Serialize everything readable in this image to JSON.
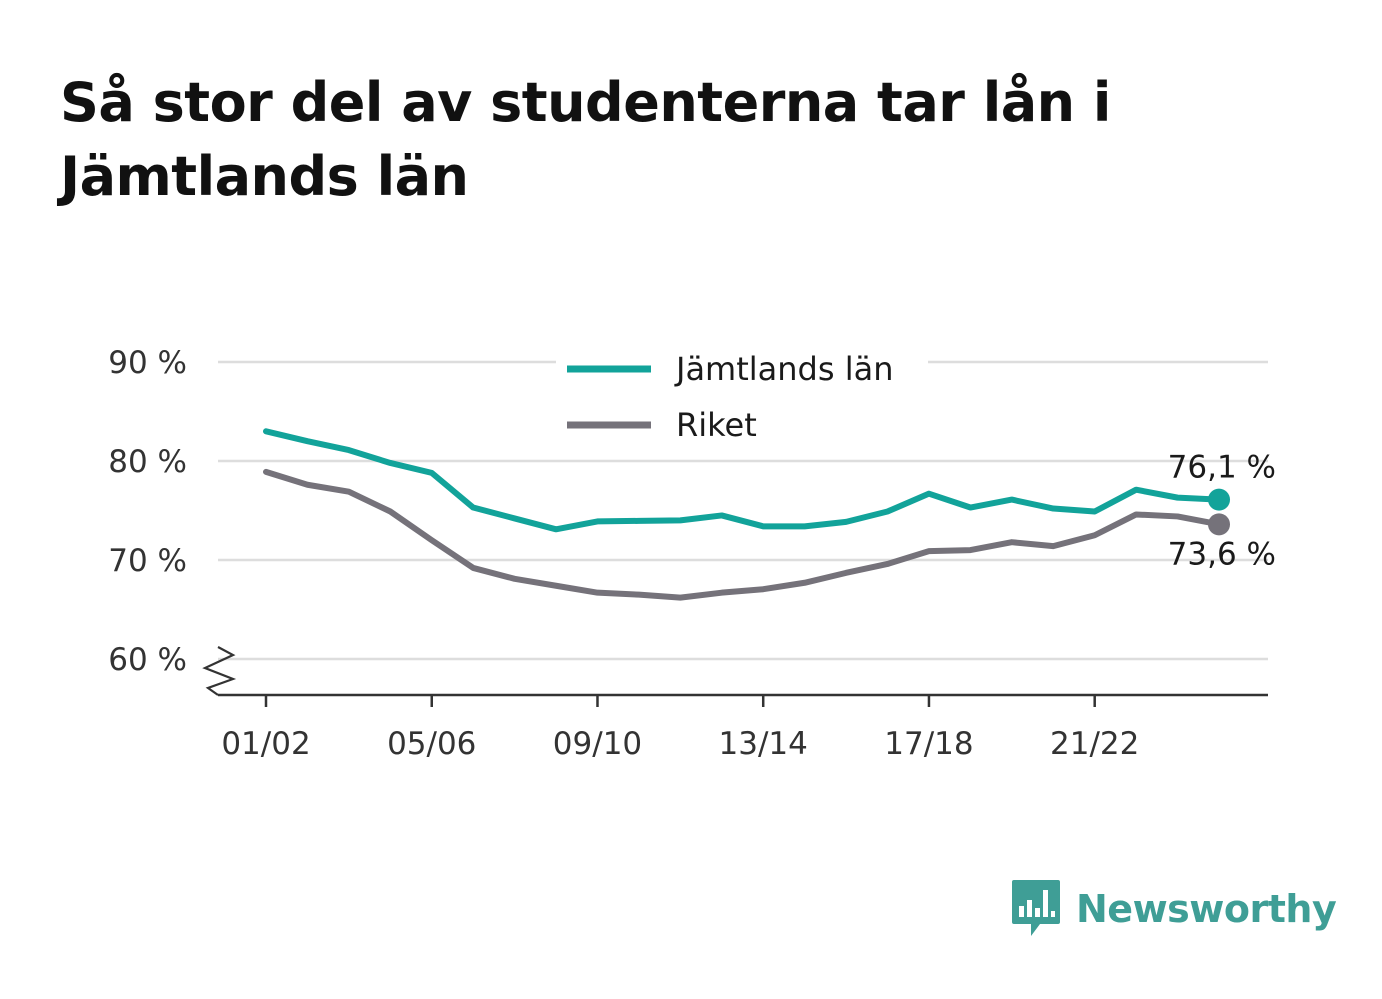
{
  "title": "Så stor del av studenterna tar lån i Jämtlands län",
  "colors": {
    "jamtland": "#12a39a",
    "riket": "#75727a",
    "grid": "#dddddd",
    "axis": "#333333",
    "brand": "#3f9e96"
  },
  "brand": {
    "name": "Newsworthy",
    "icon": "bar-chart-speech-bubble-icon"
  },
  "chart_data": {
    "type": "line",
    "title": "Så stor del av studenterna tar lån i Jämtlands län",
    "xlabel": "",
    "ylabel": "",
    "x": [
      "01/02",
      "02/03",
      "03/04",
      "04/05",
      "05/06",
      "06/07",
      "07/08",
      "08/09",
      "09/10",
      "10/11",
      "11/12",
      "12/13",
      "13/14",
      "14/15",
      "15/16",
      "16/17",
      "17/18",
      "18/19",
      "19/20",
      "20/21",
      "21/22",
      "22/23",
      "23/24",
      "24/25"
    ],
    "x_tick_labels": [
      "01/02",
      "05/06",
      "09/10",
      "13/14",
      "17/18",
      "21/22"
    ],
    "y_ticks": [
      60,
      70,
      80,
      90
    ],
    "y_tick_labels": [
      "60 %",
      "70 %",
      "80 %",
      "90 %"
    ],
    "ylim": [
      56.5,
      90
    ],
    "y_axis_break": true,
    "grid": true,
    "legend_position": "top-center",
    "series": [
      {
        "name": "Jämtlands län",
        "color": "#12a39a",
        "values": [
          83.0,
          82.0,
          81.1,
          79.8,
          78.8,
          75.3,
          74.2,
          73.1,
          73.9,
          73.95,
          74.0,
          74.5,
          73.4,
          73.4,
          73.85,
          74.9,
          76.7,
          75.3,
          76.1,
          75.2,
          74.9,
          77.1,
          76.3,
          76.1
        ],
        "end_label": "76,1 %"
      },
      {
        "name": "Riket",
        "color": "#75727a",
        "values": [
          78.9,
          77.6,
          76.9,
          74.9,
          72.0,
          69.2,
          68.1,
          67.4,
          66.7,
          66.5,
          66.2,
          66.7,
          67.05,
          67.7,
          68.7,
          69.6,
          70.9,
          71.0,
          71.8,
          71.4,
          72.5,
          74.6,
          74.4,
          73.6
        ],
        "end_label": "73,6 %"
      }
    ]
  }
}
